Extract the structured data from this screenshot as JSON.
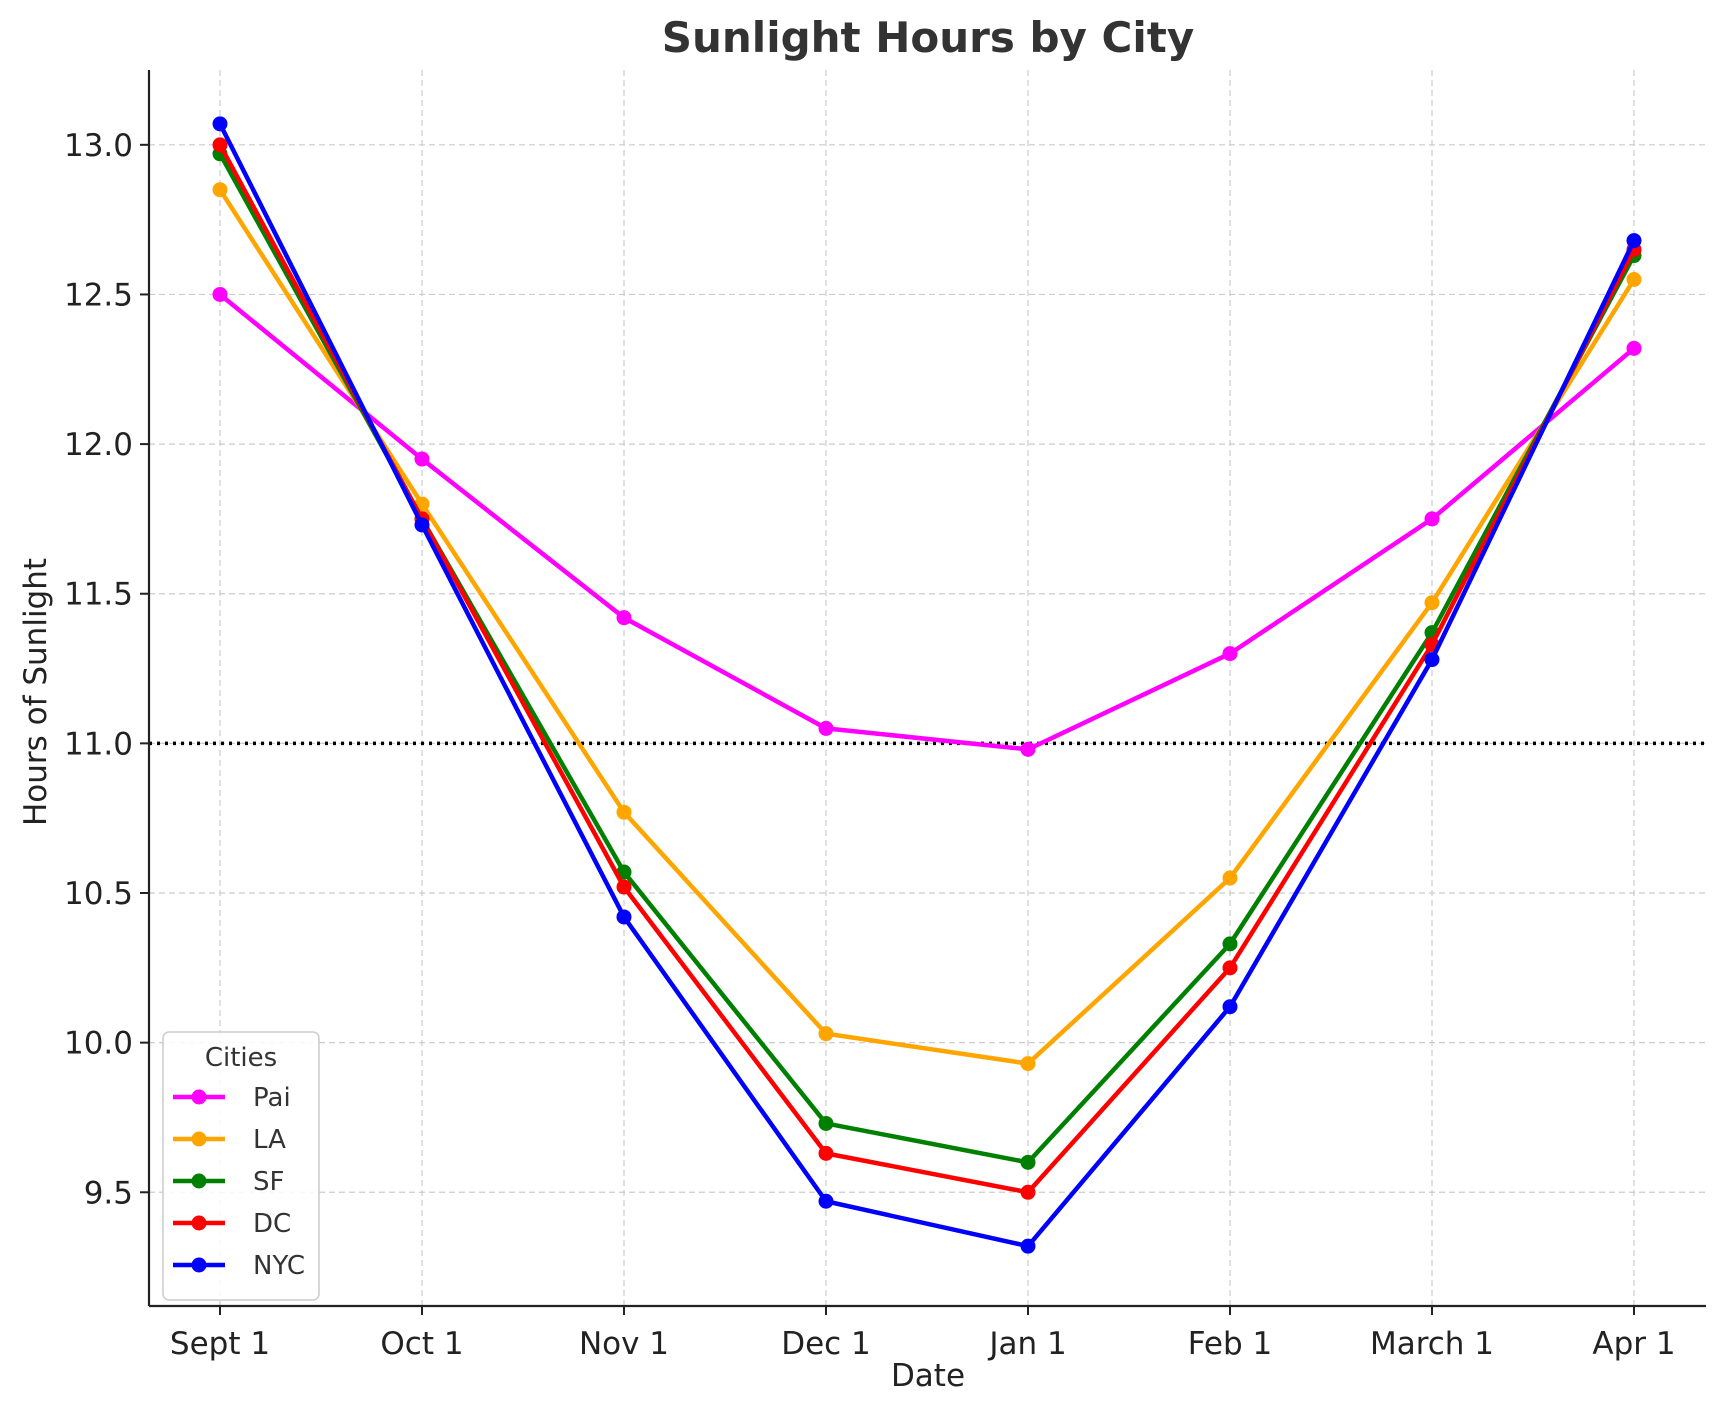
{
  "chart_data": {
    "type": "line",
    "title": "Sunlight Hours by City",
    "xlabel": "Date",
    "ylabel": "Hours of Sunlight",
    "categories": [
      "Sept 1",
      "Oct 1",
      "Nov 1",
      "Dec 1",
      "Jan 1",
      "Feb 1",
      "March 1",
      "Apr 1"
    ],
    "ylim": [
      9.12,
      13.25
    ],
    "yticks": [
      9.5,
      10.0,
      10.5,
      11.0,
      11.5,
      12.0,
      12.5,
      13.0
    ],
    "ytick_labels": [
      "9.5",
      "10.0",
      "10.5",
      "11.0",
      "11.5",
      "12.0",
      "12.5",
      "13.0"
    ],
    "grid": true,
    "reference_line": {
      "y": 11.0,
      "style": "dotted",
      "color": "#000000"
    },
    "legend": {
      "title": "Cities",
      "position": "lower-left"
    },
    "series": [
      {
        "name": "Pai",
        "color": "#ff00ff",
        "values": [
          12.5,
          11.95,
          11.42,
          11.05,
          10.98,
          11.3,
          11.75,
          12.32
        ]
      },
      {
        "name": "LA",
        "color": "#ffa500",
        "values": [
          12.85,
          11.8,
          10.77,
          10.03,
          9.93,
          10.55,
          11.47,
          12.55
        ]
      },
      {
        "name": "SF",
        "color": "#008000",
        "values": [
          12.97,
          11.75,
          10.57,
          9.73,
          9.6,
          10.33,
          11.37,
          12.63
        ]
      },
      {
        "name": "DC",
        "color": "#ff0000",
        "values": [
          13.0,
          11.75,
          10.52,
          9.63,
          9.5,
          10.25,
          11.33,
          12.65
        ]
      },
      {
        "name": "NYC",
        "color": "#0000ff",
        "values": [
          13.07,
          11.73,
          10.42,
          9.47,
          9.32,
          10.12,
          11.28,
          12.68
        ]
      }
    ]
  }
}
